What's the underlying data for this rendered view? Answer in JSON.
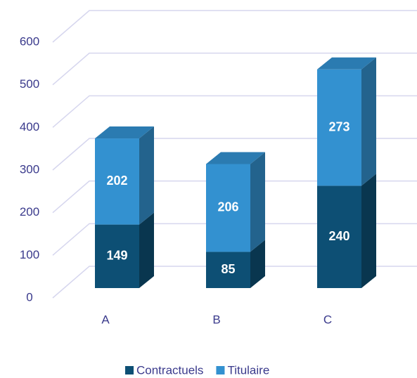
{
  "chart_data": {
    "type": "bar3d_stacked",
    "categories": [
      "A",
      "B",
      "C"
    ],
    "series": [
      {
        "name": "Contractuels",
        "color": "#0d4f74",
        "values": [
          149,
          85,
          240
        ]
      },
      {
        "name": "Titulaire",
        "color": "#3391d0",
        "values": [
          202,
          206,
          273
        ]
      }
    ],
    "ylim": [
      0,
      600
    ],
    "yticks": [
      0,
      100,
      200,
      300,
      400,
      500,
      600
    ],
    "grid": true,
    "legend": "bottom"
  }
}
